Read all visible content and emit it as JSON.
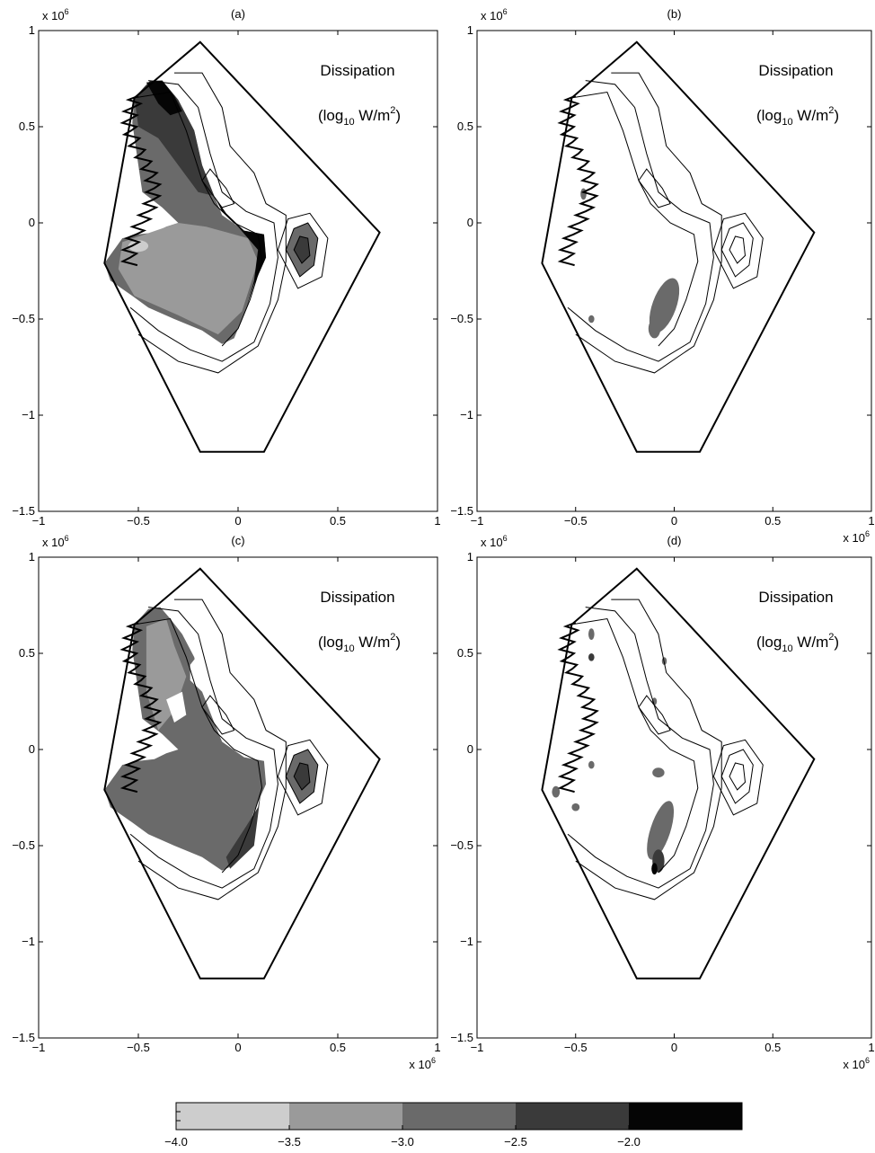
{
  "figure": {
    "colorbar": {
      "tick_labels": [
        "−4.0",
        "−3.5",
        "−3.0",
        "−2.5",
        "−2.0"
      ],
      "level_colors": [
        "#cdcdcd",
        "#9a9a9a",
        "#6a6a6a",
        "#3a3a3a",
        "#050505"
      ]
    }
  },
  "chart_data": [
    {
      "type": "heatmap",
      "title": "(a)",
      "annotation_line1": "Dissipation",
      "annotation_line2": {
        "pre": "(log",
        "sub": "10",
        "mid": " W/m",
        "sup": "2",
        "post": ")"
      },
      "xlim": [
        -1,
        1
      ],
      "ylim": [
        -1.5,
        1
      ],
      "xticks": [
        "−1",
        "−0.5",
        "0",
        "0.5",
        "1"
      ],
      "yticks": [
        "1",
        "0.5",
        "0",
        "−0.5",
        "−1",
        "−1.5"
      ],
      "x_multiplier": {
        "base": "x 10",
        "exp": "6"
      },
      "y_multiplier": {
        "base": "x 10",
        "exp": "6"
      },
      "dominant_levels": [
        "-3.5 to -3.0",
        "-2.5 to -2.0",
        "> -2.0"
      ]
    },
    {
      "type": "heatmap",
      "title": "(b)",
      "annotation_line1": "Dissipation",
      "annotation_line2": {
        "pre": "(log",
        "sub": "10",
        "mid": " W/m",
        "sup": "2",
        "post": ")"
      },
      "xlim": [
        -1,
        1
      ],
      "ylim": [
        -1.5,
        1
      ],
      "xticks": [
        "−1",
        "−0.5",
        "0",
        "0.5",
        "1"
      ],
      "yticks": [
        "1",
        "0.5",
        "0",
        "−0.5",
        "−1",
        "−1.5"
      ],
      "x_multiplier": {
        "base": "x 10",
        "exp": "6"
      },
      "y_multiplier": {
        "base": "x 10",
        "exp": "6"
      },
      "dominant_levels": [
        "-3.0 to -2.5"
      ]
    },
    {
      "type": "heatmap",
      "title": "(c)",
      "annotation_line1": "Dissipation",
      "annotation_line2": {
        "pre": "(log",
        "sub": "10",
        "mid": " W/m",
        "sup": "2",
        "post": ")"
      },
      "xlim": [
        -1,
        1
      ],
      "ylim": [
        -1.5,
        1
      ],
      "xticks": [
        "−1",
        "−0.5",
        "0",
        "0.5",
        "1"
      ],
      "yticks": [
        "1",
        "0.5",
        "0",
        "−0.5",
        "−1",
        "−1.5"
      ],
      "x_multiplier": {
        "base": "x 10",
        "exp": "6"
      },
      "y_multiplier": {
        "base": "x 10",
        "exp": "6"
      },
      "dominant_levels": [
        "-3.0 to -2.5",
        "-3.5 to -3.0",
        "-2.5 to -2.0"
      ]
    },
    {
      "type": "heatmap",
      "title": "(d)",
      "annotation_line1": "Dissipation",
      "annotation_line2": {
        "pre": "(log",
        "sub": "10",
        "mid": " W/m",
        "sup": "2",
        "post": ")"
      },
      "xlim": [
        -1,
        1
      ],
      "ylim": [
        -1.5,
        1
      ],
      "xticks": [
        "−1",
        "−0.5",
        "0",
        "0.5",
        "1"
      ],
      "yticks": [
        "1",
        "0.5",
        "0",
        "−0.5",
        "−1",
        "−1.5"
      ],
      "x_multiplier": {
        "base": "x 10",
        "exp": "6"
      },
      "y_multiplier": {
        "base": "x 10",
        "exp": "6"
      },
      "dominant_levels": [
        "-3.0 to -2.5",
        "-2.5 to -2.0"
      ]
    }
  ]
}
